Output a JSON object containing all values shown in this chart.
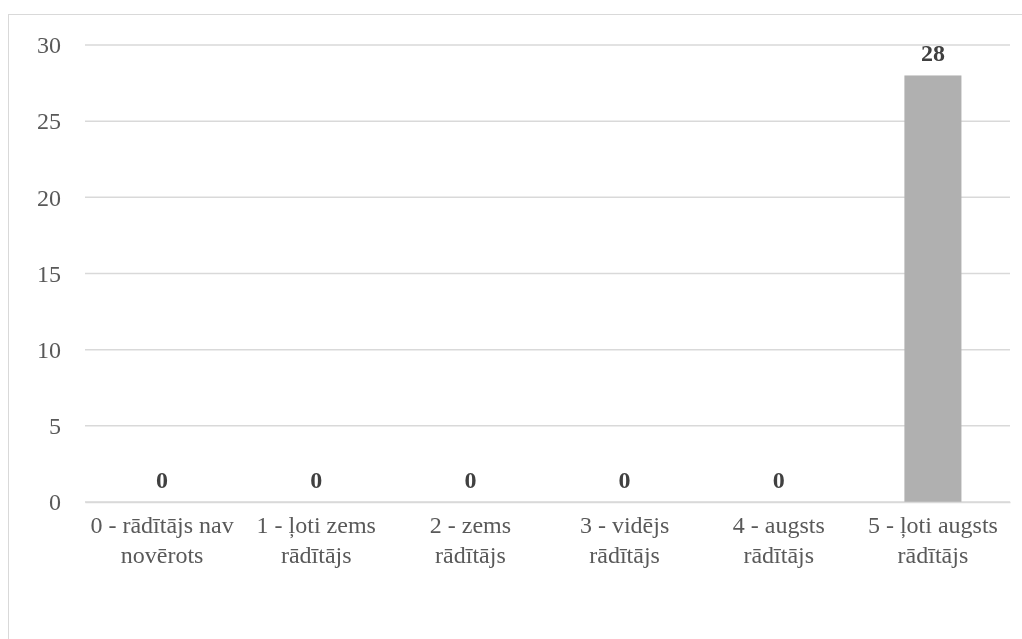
{
  "chart_data": {
    "type": "bar",
    "categories": [
      "0 - rādītājs nav novērots",
      "1 - ļoti zems rādītājs",
      "2 - zems rādītājs",
      "3 - vidējs rādītājs",
      "4 - augsts rādītājs",
      "5 - ļoti augsts rādītājs"
    ],
    "values": [
      0,
      0,
      0,
      0,
      0,
      28
    ],
    "color": "#b0b0b0",
    "ylim": [
      0,
      30
    ],
    "yticks": [
      0,
      5,
      10,
      15,
      20,
      25,
      30
    ],
    "grid": "y",
    "data_labels": true
  }
}
